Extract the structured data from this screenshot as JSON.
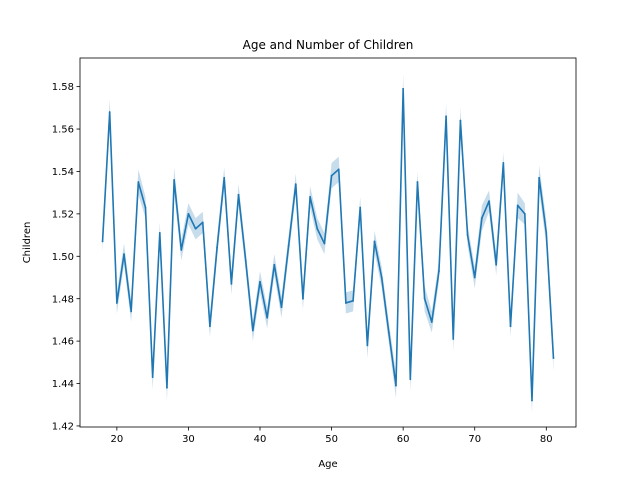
{
  "chart_data": {
    "type": "line",
    "title": "Age and Number of Children",
    "xlabel": "Age",
    "ylabel": "Children",
    "xlim": [
      14.85,
      84.15
    ],
    "ylim": [
      1.4195,
      1.5935
    ],
    "xticks": [
      20,
      30,
      40,
      50,
      60,
      70,
      80
    ],
    "yticks": [
      1.42,
      1.44,
      1.46,
      1.48,
      1.5,
      1.52,
      1.54,
      1.56,
      1.58
    ],
    "ytick_labels": [
      "1.42",
      "1.44",
      "1.46",
      "1.48",
      "1.50",
      "1.52",
      "1.54",
      "1.56",
      "1.58"
    ],
    "grid": false,
    "legend": false,
    "colors": {
      "line": "#1f77b4",
      "band": "#1f77b4"
    },
    "series": [
      {
        "x": [
          18,
          19,
          20,
          21,
          22,
          23,
          24,
          25,
          26,
          27,
          28,
          29,
          30,
          31,
          32,
          33,
          34,
          35,
          36,
          37,
          38,
          39,
          40,
          41,
          42,
          43,
          44,
          45,
          46,
          47,
          48,
          49,
          50,
          51,
          52,
          53,
          54,
          55,
          56,
          57,
          58,
          59,
          60,
          61,
          62,
          63,
          64,
          65,
          66,
          67,
          68,
          69,
          70,
          71,
          72,
          73,
          74,
          75,
          76,
          77,
          78,
          79,
          80,
          81
        ],
        "y": [
          1.507,
          1.568,
          1.478,
          1.501,
          1.474,
          1.535,
          1.523,
          1.443,
          1.511,
          1.438,
          1.536,
          1.503,
          1.52,
          1.513,
          1.516,
          1.467,
          1.504,
          1.537,
          1.487,
          1.529,
          1.498,
          1.465,
          1.488,
          1.471,
          1.496,
          1.476,
          1.505,
          1.534,
          1.48,
          1.528,
          1.513,
          1.506,
          1.538,
          1.541,
          1.478,
          1.479,
          1.523,
          1.458,
          1.507,
          1.49,
          1.464,
          1.439,
          1.579,
          1.442,
          1.535,
          1.48,
          1.469,
          1.493,
          1.566,
          1.461,
          1.564,
          1.51,
          1.49,
          1.518,
          1.526,
          1.496,
          1.544,
          1.467,
          1.524,
          1.52,
          1.432,
          1.537,
          1.511,
          1.452
        ],
        "ci_halfwidth": [
          0.005,
          0.006,
          0.005,
          0.005,
          0.005,
          0.006,
          0.005,
          0.006,
          0.005,
          0.006,
          0.006,
          0.005,
          0.005,
          0.005,
          0.005,
          0.005,
          0.005,
          0.005,
          0.005,
          0.005,
          0.005,
          0.005,
          0.005,
          0.005,
          0.005,
          0.005,
          0.005,
          0.005,
          0.005,
          0.005,
          0.005,
          0.005,
          0.006,
          0.006,
          0.005,
          0.005,
          0.005,
          0.006,
          0.005,
          0.005,
          0.005,
          0.006,
          0.007,
          0.006,
          0.005,
          0.006,
          0.005,
          0.005,
          0.006,
          0.006,
          0.006,
          0.005,
          0.005,
          0.006,
          0.005,
          0.005,
          0.005,
          0.005,
          0.006,
          0.005,
          0.006,
          0.006,
          0.006,
          0.006
        ]
      }
    ]
  }
}
